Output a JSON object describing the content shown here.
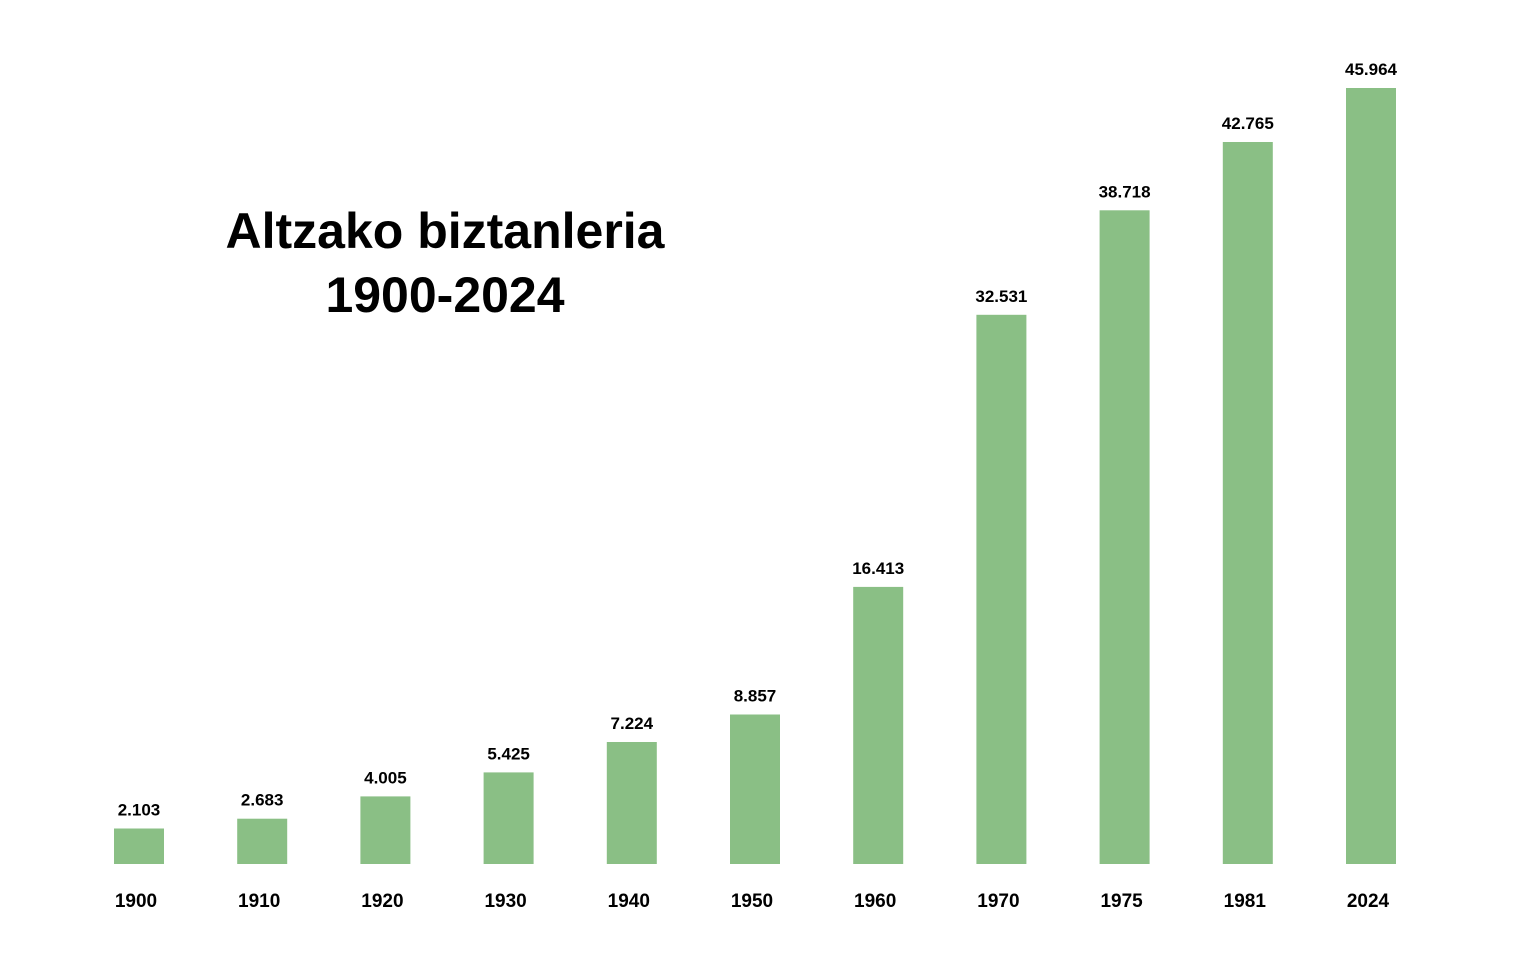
{
  "chart_data": {
    "type": "bar",
    "title": "Altzako biztanleria",
    "subtitle": "1900-2024",
    "categories": [
      "1900",
      "1910",
      "1920",
      "1930",
      "1940",
      "1950",
      "1960",
      "1970",
      "1975",
      "1981",
      "2024"
    ],
    "values": [
      2103,
      2683,
      4005,
      5425,
      7224,
      8857,
      16413,
      32531,
      38718,
      42765,
      45964
    ],
    "data_labels": [
      "2.103",
      "2.683",
      "4.005",
      "5.425",
      "7.224",
      "8.857",
      "16.413",
      "32.531",
      "38.718",
      "42.765",
      "45.964"
    ],
    "xlabel": "",
    "ylabel": "",
    "ylim": [
      0,
      45964
    ],
    "grid": false,
    "legend": "none",
    "bar_color": "#8abf85"
  }
}
